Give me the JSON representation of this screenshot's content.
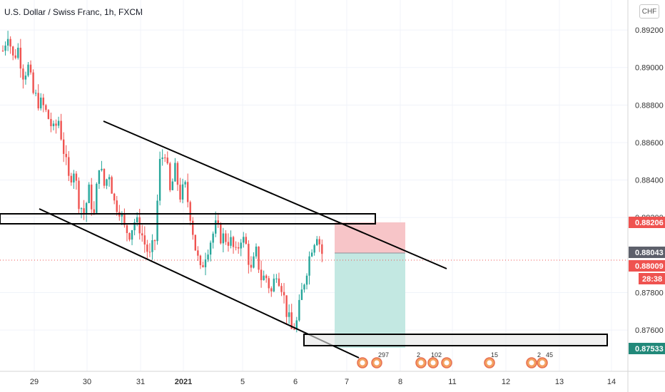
{
  "header": {
    "title": "U.S. Dollar / Swiss Franc, 1h, FXCM",
    "currency": "CHF"
  },
  "price_tags": {
    "zone_top": "0.88206",
    "current": "0.88043",
    "last": "0.88009",
    "countdown": "28:38",
    "zone_bottom": "0.87533"
  },
  "events": [
    {
      "label": "297"
    },
    {
      "label": "2"
    },
    {
      "label": "102"
    },
    {
      "label": "15"
    },
    {
      "label": "2"
    },
    {
      "label": "45"
    }
  ],
  "colors": {
    "up": "#26a69a",
    "down": "#ef5350",
    "stop_zone": "#f7c5c8",
    "target_zone": "#c3e8e2",
    "tag_red": "#ef5350",
    "tag_grey": "#5d606b",
    "tag_teal": "#22897a"
  },
  "chart_data": {
    "type": "candlestick",
    "title": "U.S. Dollar / Swiss Franc, 1h, FXCM",
    "x_ticks": [
      "29",
      "30",
      "31",
      "2021",
      "5",
      "6",
      "7",
      "8",
      "11",
      "12",
      "13",
      "14"
    ],
    "y_ticks": [
      0.892,
      0.89,
      0.888,
      0.886,
      0.884,
      0.882,
      0.878,
      0.876
    ],
    "y_tick_labels": [
      "0.89200",
      "0.89000",
      "0.88800",
      "0.88600",
      "0.88400",
      "0.88200",
      "0.87800",
      "0.87600"
    ],
    "ylim": [
      0.8738,
      0.8936
    ],
    "grid": true,
    "price_path": [
      [
        0,
        0.8909
      ],
      [
        2,
        0.8919
      ],
      [
        4,
        0.8905
      ],
      [
        6,
        0.891
      ],
      [
        8,
        0.8897
      ],
      [
        10,
        0.89
      ],
      [
        12,
        0.8886
      ],
      [
        14,
        0.8882
      ],
      [
        16,
        0.8879
      ],
      [
        18,
        0.8873
      ],
      [
        20,
        0.8866
      ],
      [
        22,
        0.8872
      ],
      [
        24,
        0.8856
      ],
      [
        26,
        0.884
      ],
      [
        28,
        0.8846
      ],
      [
        30,
        0.8829
      ],
      [
        32,
        0.8822
      ],
      [
        34,
        0.8834
      ],
      [
        36,
        0.8821
      ],
      [
        38,
        0.8849
      ],
      [
        40,
        0.8837
      ],
      [
        42,
        0.8844
      ],
      [
        44,
        0.8828
      ],
      [
        46,
        0.8825
      ],
      [
        48,
        0.8814
      ],
      [
        50,
        0.8812
      ],
      [
        52,
        0.8818
      ],
      [
        54,
        0.8815
      ],
      [
        56,
        0.8806
      ],
      [
        58,
        0.8799
      ],
      [
        60,
        0.8808
      ],
      [
        62,
        0.8849
      ],
      [
        64,
        0.8856
      ],
      [
        66,
        0.8833
      ],
      [
        68,
        0.8845
      ],
      [
        70,
        0.8832
      ],
      [
        72,
        0.8836
      ],
      [
        74,
        0.8822
      ],
      [
        76,
        0.8804
      ],
      [
        78,
        0.8791
      ],
      [
        80,
        0.8801
      ],
      [
        82,
        0.8808
      ],
      [
        84,
        0.8815
      ],
      [
        86,
        0.881
      ],
      [
        88,
        0.8809
      ],
      [
        90,
        0.8807
      ],
      [
        92,
        0.88
      ],
      [
        94,
        0.881
      ],
      [
        96,
        0.8805
      ],
      [
        98,
        0.8791
      ],
      [
        100,
        0.8801
      ],
      [
        102,
        0.8788
      ],
      [
        104,
        0.8788
      ],
      [
        106,
        0.878
      ],
      [
        108,
        0.8792
      ],
      [
        110,
        0.8784
      ],
      [
        112,
        0.877
      ],
      [
        114,
        0.876
      ],
      [
        116,
        0.8764
      ],
      [
        118,
        0.878
      ],
      [
        120,
        0.8793
      ],
      [
        122,
        0.8805
      ],
      [
        124,
        0.8812
      ],
      [
        126,
        0.8801
      ]
    ],
    "drawings": {
      "upper_trendline": [
        [
          0.8875,
          0.88012
        ],
        "from 30 Dec to 8 Jan"
      ],
      "lower_trendline": [
        [
          0.88268,
          0.87535
        ],
        "from 29 Dec to 7 Jan"
      ],
      "resistance_zone": [
        0.88223,
        0.88195
      ],
      "support_zone": [
        0.87613,
        0.87545
      ],
      "short_position": {
        "entry": 0.88047,
        "stop": 0.88206,
        "target": 0.87533
      }
    }
  }
}
